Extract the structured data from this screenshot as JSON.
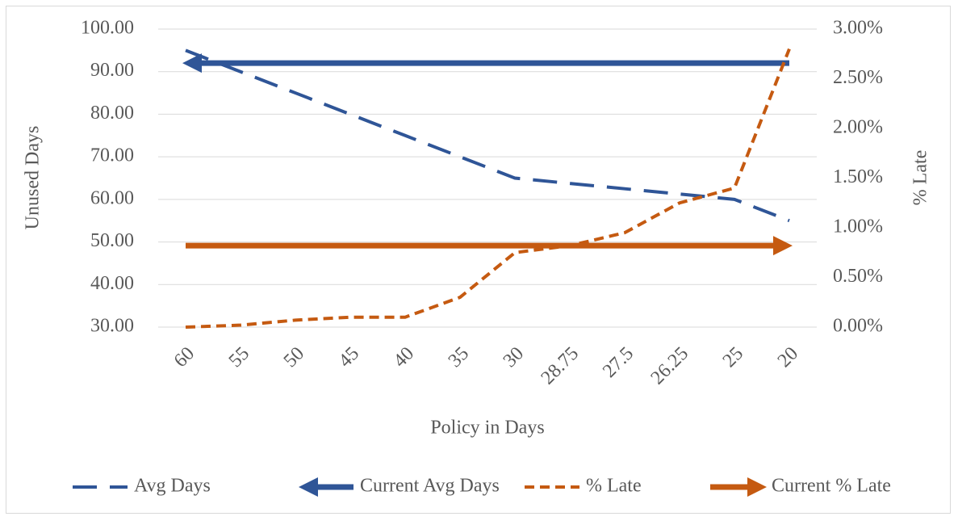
{
  "chart_data": {
    "type": "line",
    "x_label": "Policy in Days",
    "y_label": "Unused Days",
    "y2_label": "% Late",
    "categories": [
      "60",
      "55",
      "50",
      "45",
      "40",
      "35",
      "30",
      "28.75",
      "27.5",
      "26.25",
      "25",
      "20"
    ],
    "ylim": [
      30,
      100
    ],
    "yticks": [
      {
        "value": 30,
        "label": "30.00"
      },
      {
        "value": 40,
        "label": "40.00"
      },
      {
        "value": 50,
        "label": "50.00"
      },
      {
        "value": 60,
        "label": "60.00"
      },
      {
        "value": 70,
        "label": "70.00"
      },
      {
        "value": 80,
        "label": "80.00"
      },
      {
        "value": 90,
        "label": "90.00"
      },
      {
        "value": 100,
        "label": "100.00"
      }
    ],
    "y2lim": [
      0,
      3
    ],
    "y2ticks": [
      {
        "value": 0,
        "label": "0.00%"
      },
      {
        "value": 0.5,
        "label": "0.50%"
      },
      {
        "value": 1,
        "label": "1.00%"
      },
      {
        "value": 1.5,
        "label": "1.50%"
      },
      {
        "value": 2,
        "label": "2.00%"
      },
      {
        "value": 2.5,
        "label": "2.50%"
      },
      {
        "value": 3,
        "label": "3.00%"
      }
    ],
    "grid": true,
    "legend": "bottom",
    "series": [
      {
        "name": "Avg Days",
        "color": "#2f5597",
        "dash": "long-dash",
        "values": [
          95,
          90,
          85,
          80,
          75,
          70,
          65,
          63.75,
          62.5,
          61.25,
          60,
          55
        ]
      },
      {
        "name": "Current Avg Days",
        "color": "#2f5597",
        "dash": "solid",
        "arrow": "start",
        "values": [
          92,
          92,
          92,
          92,
          92,
          92,
          92,
          92,
          92,
          92,
          92,
          92
        ]
      },
      {
        "name": "% Late",
        "color": "#c55a11",
        "dash": "dash",
        "axis": "y2",
        "values": [
          0,
          0.02,
          0.07,
          0.1,
          0.1,
          0.3,
          0.75,
          0.82,
          0.95,
          1.25,
          1.4,
          2.8
        ]
      },
      {
        "name": "Current % Late",
        "color": "#c55a11",
        "dash": "solid",
        "arrow": "end",
        "axis": "y2",
        "values": [
          0.82,
          0.82,
          0.82,
          0.82,
          0.82,
          0.82,
          0.82,
          0.82,
          0.82,
          0.82,
          0.82,
          0.82
        ]
      }
    ]
  }
}
